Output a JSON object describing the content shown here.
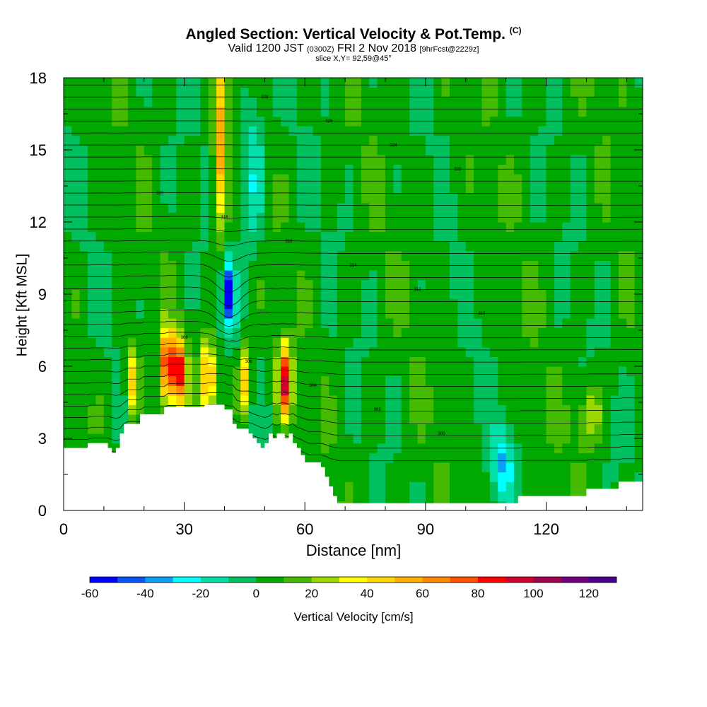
{
  "header": {
    "title": "Angled Section: Vertical Velocity & Pot.Temp.",
    "title_mark": "(C)",
    "subtitle_main": "Valid 1200 JST",
    "subtitle_utc": "(0300Z)",
    "subtitle_date": "FRI 2 Nov 2018",
    "subtitle_fcst": "[9hrFcst@2229z]",
    "slice": "slice X,Y= 92,59@45°"
  },
  "chart_data": {
    "type": "heatmap",
    "title": "Angled Section: Vertical Velocity & Pot.Temp.",
    "xlabel": "Distance [nm]",
    "ylabel": "Height [Kft MSL]",
    "xlim": [
      0,
      144
    ],
    "ylim": [
      0,
      18
    ],
    "x_ticks": [
      "0",
      "30",
      "60",
      "90",
      "120"
    ],
    "x_tick_values": [
      0,
      30,
      60,
      90,
      120
    ],
    "y_ticks": [
      "0",
      "3",
      "6",
      "9",
      "12",
      "15",
      "18"
    ],
    "y_tick_values": [
      0,
      3,
      6,
      9,
      12,
      15,
      18
    ],
    "colorbar": {
      "label": "Vertical Velocity [cm/s]",
      "range": [
        -60,
        130
      ],
      "step": 10,
      "tick_labels": [
        "-60",
        "-40",
        "-20",
        "0",
        "20",
        "40",
        "60",
        "80",
        "100",
        "120"
      ],
      "tick_values": [
        -60,
        -40,
        -20,
        0,
        20,
        40,
        60,
        80,
        100,
        120
      ],
      "colors": [
        "#0000ff",
        "#0a55f2",
        "#0aa0f5",
        "#00ffff",
        "#00e0a8",
        "#00c060",
        "#00a800",
        "#44bb00",
        "#99d800",
        "#ffff00",
        "#ffd800",
        "#ffb000",
        "#ff8800",
        "#ff5000",
        "#ff0000",
        "#d20030",
        "#a0004c",
        "#72007e",
        "#4a008c"
      ]
    },
    "terrain_height_kft": {
      "x": [
        0,
        5,
        6,
        10,
        11,
        12,
        13,
        14,
        15,
        16,
        18,
        19,
        20,
        24,
        25,
        26,
        34,
        35,
        37,
        40,
        42,
        43,
        45,
        46,
        47,
        48,
        49,
        50,
        51,
        52,
        53,
        55,
        56,
        57,
        58,
        59,
        60,
        63,
        64,
        65,
        66,
        67,
        68,
        70,
        75,
        80,
        100,
        112,
        113,
        128,
        130,
        135,
        138,
        144
      ],
      "h": [
        2.6,
        2.6,
        2.8,
        2.8,
        2.6,
        2.4,
        2.6,
        3.2,
        3.6,
        3.6,
        3.6,
        4.0,
        4.0,
        4.0,
        4.3,
        4.3,
        4.3,
        4.4,
        4.4,
        4.2,
        3.6,
        3.4,
        3.4,
        3.2,
        3.0,
        2.8,
        2.6,
        2.8,
        3.2,
        3.0,
        3.2,
        3.0,
        3.2,
        2.8,
        2.6,
        2.3,
        2.0,
        2.0,
        1.8,
        1.4,
        1.0,
        0.6,
        0.3,
        0.3,
        0.3,
        0.3,
        0.3,
        0.3,
        0.6,
        0.6,
        0.9,
        0.9,
        1.2,
        1.2
      ]
    },
    "w_features": [
      {
        "x": 26,
        "z": 6.0,
        "w": 100
      },
      {
        "x": 17,
        "z": 5.4,
        "w": 45
      },
      {
        "x": 29,
        "z": 5.8,
        "w": 75
      },
      {
        "x": 36,
        "z": 5.6,
        "w": 65
      },
      {
        "x": 39,
        "z": 15.0,
        "w": 55
      },
      {
        "x": 45,
        "z": 5.4,
        "w": 45
      },
      {
        "x": 55,
        "z": 5.4,
        "w": 85
      },
      {
        "x": 41,
        "z": 9.0,
        "w": -55
      },
      {
        "x": 47,
        "z": 14.0,
        "w": -25
      },
      {
        "x": 109,
        "z": 2.0,
        "w": -30
      },
      {
        "x": 131,
        "z": 4.0,
        "w": 25
      }
    ],
    "theta_labels_k": [
      "298",
      "300",
      "302",
      "304",
      "306",
      "308",
      "310",
      "312",
      "314",
      "316",
      "318",
      "320",
      "322",
      "324",
      "326",
      "328",
      "330",
      "332",
      "334",
      "336"
    ]
  }
}
